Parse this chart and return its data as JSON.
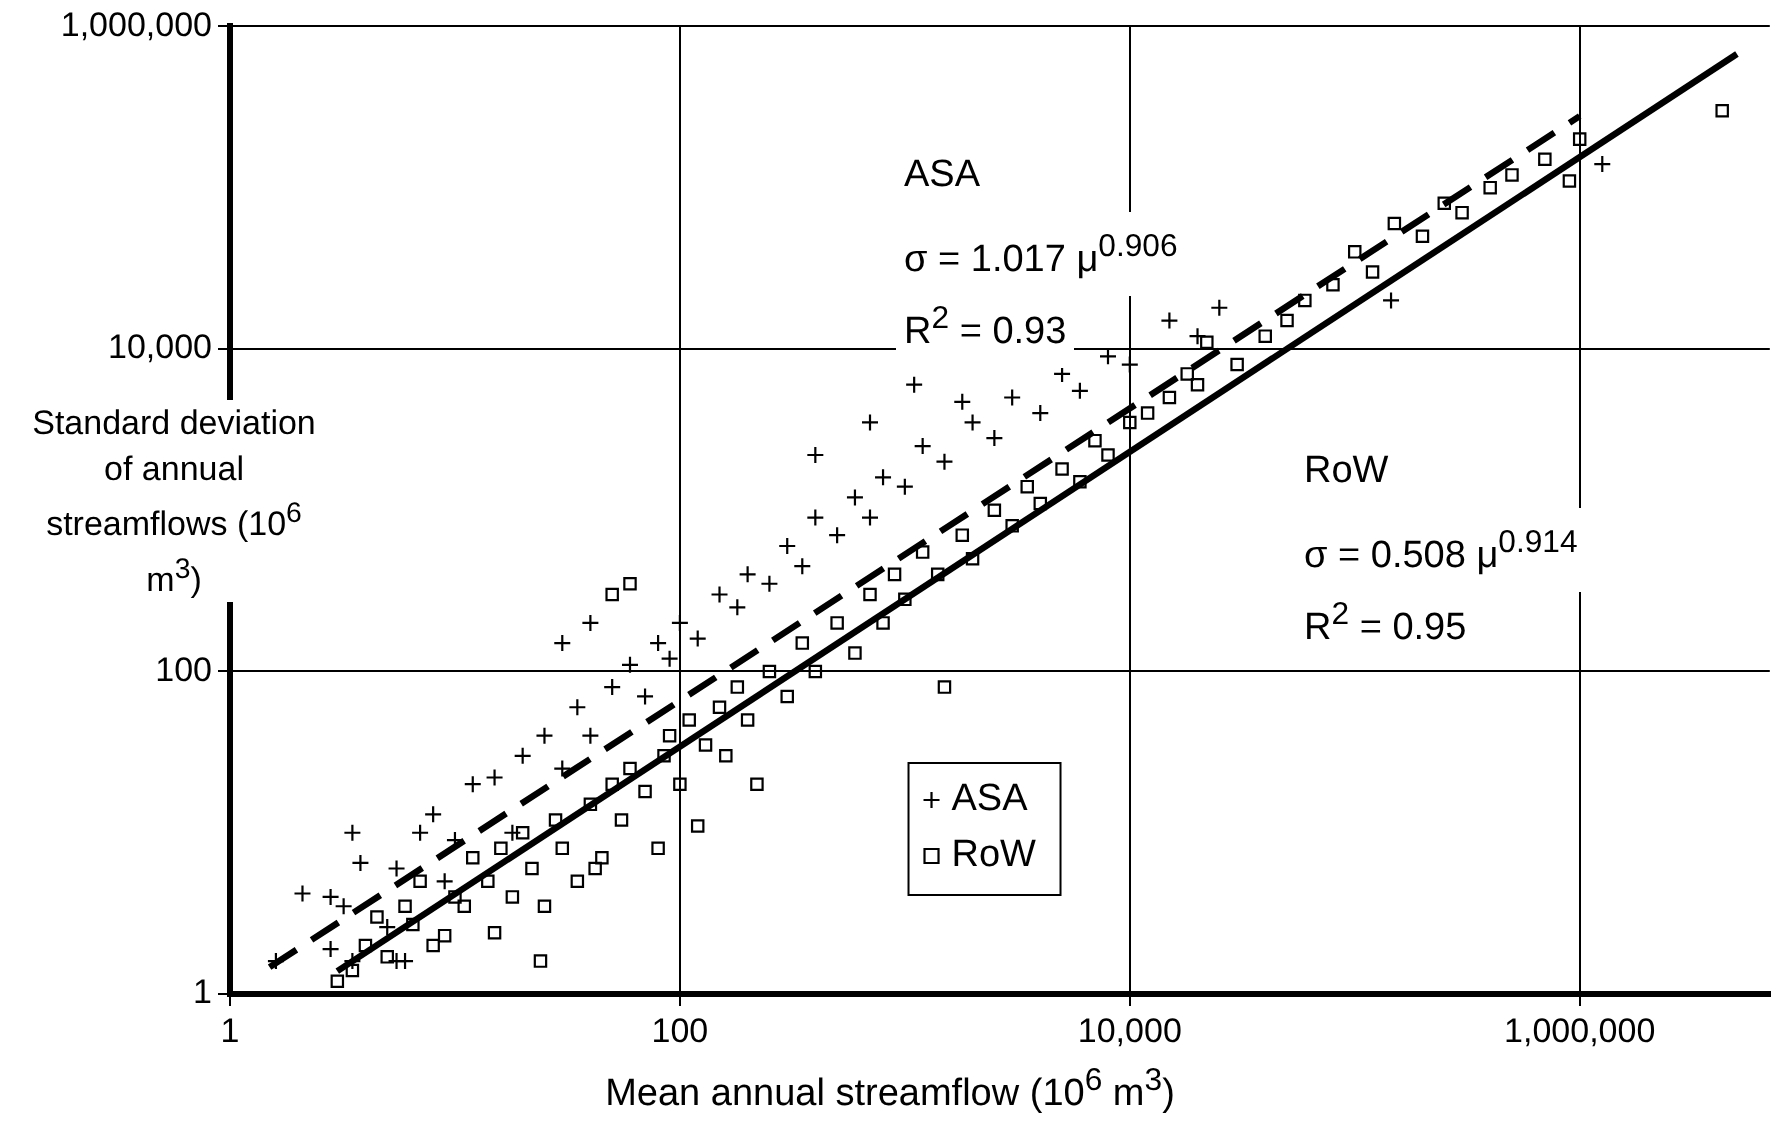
{
  "chart_data": {
    "type": "scatter",
    "xlabel": "Mean annual streamflow (10$^{6}$ m$^{3}$)",
    "ylabel": "Standard deviation of annual streamflows (10$^{6}$ m$^{3}$)",
    "log": "xy",
    "grid": true,
    "legend": "bottom",
    "xlim": [
      1,
      7000000
    ],
    "ylim": [
      1,
      1000000
    ],
    "xticks": [
      1,
      100,
      {
        "value": 10000,
        "label": "10,000"
      },
      {
        "value": 1000000,
        "label": "1,000,000"
      }
    ],
    "yticks": [
      1,
      100,
      {
        "value": 10000,
        "label": "10,000"
      },
      {
        "value": 1000000,
        "label": "1,000,000"
      }
    ],
    "annotations": [
      "ASA",
      "σ = 1.017 μ$^{0.906}$",
      "R$^{2}$ = 0.93",
      "RoW",
      "σ = 0.508 μ$^{0.914}$",
      "R$^{2}$ = 0.95"
    ],
    "series": [
      {
        "name": "ASA",
        "type": "scatter",
        "marker": "cross",
        "color": "#000000",
        "x": [
          1.6,
          2.1,
          2.8,
          3.2,
          3.5,
          3.8,
          2.8,
          3.5,
          5,
          5.5,
          6,
          5.5,
          7,
          8,
          9,
          10,
          12,
          15,
          18,
          20,
          25,
          30,
          35,
          40,
          50,
          60,
          70,
          80,
          90,
          100,
          120,
          150,
          180,
          200,
          250,
          300,
          350,
          400,
          500,
          600,
          700,
          800,
          1000,
          1200,
          1500,
          2000,
          2500,
          3000,
          4000,
          5000,
          6000,
          8000,
          10000,
          15000,
          20000,
          25000,
          1100,
          400,
          700,
          1800,
          145000,
          1260000,
          40,
          30
        ],
        "values": [
          1.6,
          4.2,
          4,
          3.5,
          10,
          6.5,
          1.9,
          1.6,
          2.6,
          1.6,
          1.6,
          6,
          10,
          13,
          5,
          9,
          20,
          22,
          10,
          30,
          40,
          25,
          60,
          40,
          80,
          110,
          70,
          150,
          120,
          200,
          160,
          300,
          250,
          400,
          350,
          600,
          450,
          900,
          700,
          1200,
          900,
          1600,
          1400,
          2500,
          2000,
          3500,
          2800,
          5000,
          4000,
          7000,
          5500,
          9000,
          8000,
          15000,
          12000,
          18000,
          6000,
          2200,
          3500,
          4700,
          20000,
          140000,
          200,
          150
        ]
      },
      {
        "name": "RoW",
        "type": "scatter",
        "marker": "square",
        "color": "#000000",
        "x": [
          3,
          3.5,
          4,
          5,
          4.5,
          6,
          6.5,
          7,
          8,
          9,
          10,
          11,
          12,
          14,
          15,
          16,
          18,
          20,
          22,
          24,
          25,
          28,
          30,
          35,
          40,
          42,
          45,
          50,
          55,
          60,
          70,
          80,
          85,
          90,
          100,
          110,
          120,
          130,
          150,
          160,
          180,
          200,
          220,
          250,
          300,
          350,
          400,
          500,
          600,
          700,
          800,
          900,
          1000,
          1200,
          1400,
          1500,
          1800,
          2000,
          2500,
          3000,
          3500,
          4000,
          5000,
          6000,
          7000,
          8000,
          10000,
          12000,
          15000,
          18000,
          20000,
          22000,
          30000,
          40000,
          50000,
          60000,
          80000,
          100000,
          120000,
          150000,
          200000,
          250000,
          300000,
          400000,
          500000,
          700000,
          900000,
          1000000,
          4300000,
          60,
          50
        ],
        "values": [
          1.2,
          1.4,
          2,
          1.7,
          3,
          3.5,
          2.7,
          5,
          2,
          2.3,
          4,
          3.5,
          7,
          5,
          2.4,
          8,
          4,
          10,
          6,
          1.6,
          3.5,
          12,
          8,
          5,
          15,
          6,
          7,
          20,
          12,
          25,
          18,
          8,
          30,
          40,
          20,
          50,
          11,
          35,
          60,
          30,
          80,
          50,
          20,
          100,
          70,
          150,
          100,
          200,
          130,
          300,
          200,
          400,
          280,
          550,
          400,
          80,
          700,
          500,
          1000,
          800,
          1400,
          1100,
          1800,
          1500,
          2700,
          2200,
          3500,
          4000,
          5000,
          7000,
          6000,
          11000,
          8000,
          12000,
          15000,
          20000,
          25000,
          40000,
          30000,
          60000,
          50000,
          80000,
          70000,
          100000,
          120000,
          150000,
          110000,
          200000,
          300000,
          350,
          300
        ]
      },
      {
        "type": "line",
        "line_style": "dashed",
        "color": "#000000",
        "x": [
          1.5,
          1000000
        ],
        "values": [
          1.467,
          277500
        ]
      },
      {
        "type": "line",
        "line_style": "solid",
        "color": "#000000",
        "x": [
          3,
          5000000
        ],
        "values": [
          1.386,
          674000
        ]
      }
    ]
  }
}
